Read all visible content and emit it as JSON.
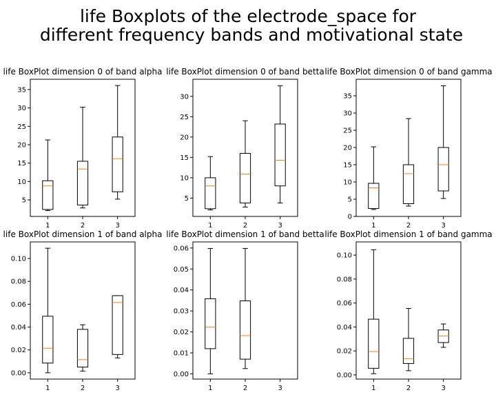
{
  "figure": {
    "title_line1": "life Boxplots of the electrode_space for",
    "title_line2": "different frequency bands and motivational state"
  },
  "chart_data": [
    {
      "type": "box",
      "title": "life BoxPlot dimension 0 of band alpha",
      "categories": [
        "1",
        "2",
        "3"
      ],
      "ylim": [
        0.5,
        37.8
      ],
      "yticks": [
        5,
        10,
        15,
        20,
        25,
        30,
        35
      ],
      "ytick_labels": [
        "5",
        "10",
        "15",
        "20",
        "25",
        "30",
        "35"
      ],
      "boxes": [
        {
          "whislo": 2.1,
          "q1": 2.4,
          "med": 8.8,
          "q3": 10.2,
          "whishi": 21.3
        },
        {
          "whislo": 2.8,
          "q1": 3.6,
          "med": 13.4,
          "q3": 15.5,
          "whishi": 30.2
        },
        {
          "whislo": 5.2,
          "q1": 7.2,
          "med": 16.2,
          "q3": 22.1,
          "whishi": 36.1
        }
      ]
    },
    {
      "type": "box",
      "title": "life BoxPlot dimension 0 of band betta",
      "categories": [
        "1",
        "2",
        "3"
      ],
      "ylim": [
        0.5,
        34.2
      ],
      "yticks": [
        5,
        10,
        15,
        20,
        25,
        30
      ],
      "ytick_labels": [
        "5",
        "10",
        "15",
        "20",
        "25",
        "30"
      ],
      "boxes": [
        {
          "whislo": 2.1,
          "q1": 2.4,
          "med": 8.0,
          "q3": 10.0,
          "whishi": 15.2
        },
        {
          "whislo": 2.8,
          "q1": 3.8,
          "med": 10.9,
          "q3": 16.0,
          "whishi": 24.0
        },
        {
          "whislo": 3.8,
          "q1": 8.0,
          "med": 14.3,
          "q3": 23.2,
          "whishi": 32.6
        }
      ]
    },
    {
      "type": "box",
      "title": "life BoxPlot dimension 0 of band gamma",
      "categories": [
        "1",
        "2",
        "3"
      ],
      "ylim": [
        0,
        39.8
      ],
      "yticks": [
        0,
        5,
        10,
        15,
        20,
        25,
        30,
        35
      ],
      "ytick_labels": [
        "0",
        "5",
        "10",
        "15",
        "20",
        "25",
        "30",
        "35"
      ],
      "boxes": [
        {
          "whislo": 2.0,
          "q1": 2.3,
          "med": 8.3,
          "q3": 9.6,
          "whishi": 20.2
        },
        {
          "whislo": 3.0,
          "q1": 3.7,
          "med": 12.4,
          "q3": 15.0,
          "whishi": 28.4
        },
        {
          "whislo": 5.2,
          "q1": 7.4,
          "med": 15.0,
          "q3": 20.0,
          "whishi": 37.9
        }
      ]
    },
    {
      "type": "box",
      "title": "life BoxPlot dimension 1 of band alpha",
      "categories": [
        "1",
        "2",
        "3"
      ],
      "ylim": [
        -0.0055,
        0.1145
      ],
      "yticks": [
        0.0,
        0.02,
        0.04,
        0.06,
        0.08,
        0.1
      ],
      "ytick_labels": [
        "0.00",
        "0.02",
        "0.04",
        "0.06",
        "0.08",
        "0.10"
      ],
      "boxes": [
        {
          "whislo": 0.0,
          "q1": 0.0085,
          "med": 0.0215,
          "q3": 0.0495,
          "whishi": 0.109
        },
        {
          "whislo": 0.0015,
          "q1": 0.005,
          "med": 0.0115,
          "q3": 0.038,
          "whishi": 0.042
        },
        {
          "whislo": 0.013,
          "q1": 0.016,
          "med": 0.0615,
          "q3": 0.0675,
          "whishi": 0.0675
        }
      ]
    },
    {
      "type": "box",
      "title": "life BoxPlot dimension 1 of band betta",
      "categories": [
        "1",
        "2",
        "3"
      ],
      "ylim": [
        -0.0025,
        0.0629
      ],
      "yticks": [
        0.0,
        0.01,
        0.02,
        0.03,
        0.04,
        0.05,
        0.06
      ],
      "ytick_labels": [
        "0.00",
        "0.01",
        "0.02",
        "0.03",
        "0.04",
        "0.05",
        "0.06"
      ],
      "boxes": [
        {
          "whislo": 0.0,
          "q1": 0.012,
          "med": 0.0223,
          "q3": 0.0358,
          "whishi": 0.0598
        },
        {
          "whislo": 0.0025,
          "q1": 0.007,
          "med": 0.0182,
          "q3": 0.0348,
          "whishi": 0.0598
        },
        null
      ]
    },
    {
      "type": "box",
      "title": "life BoxPlot dimension 1 of band gamma",
      "categories": [
        "1",
        "2",
        "3"
      ],
      "ylim": [
        -0.0035,
        0.111
      ],
      "yticks": [
        0.0,
        0.02,
        0.04,
        0.06,
        0.08,
        0.1
      ],
      "ytick_labels": [
        "0.00",
        "0.02",
        "0.04",
        "0.06",
        "0.08",
        "0.10"
      ],
      "boxes": [
        {
          "whislo": 0.001,
          "q1": 0.0055,
          "med": 0.0195,
          "q3": 0.0465,
          "whishi": 0.1045
        },
        {
          "whislo": 0.0035,
          "q1": 0.0095,
          "med": 0.0135,
          "q3": 0.0305,
          "whishi": 0.0555
        },
        {
          "whislo": 0.023,
          "q1": 0.027,
          "med": 0.0325,
          "q3": 0.0375,
          "whishi": 0.0425
        }
      ]
    }
  ],
  "colors": {
    "box_edge": "#000000",
    "median": "#ff7f0e",
    "axes": "#000000",
    "background": "#ffffff"
  }
}
